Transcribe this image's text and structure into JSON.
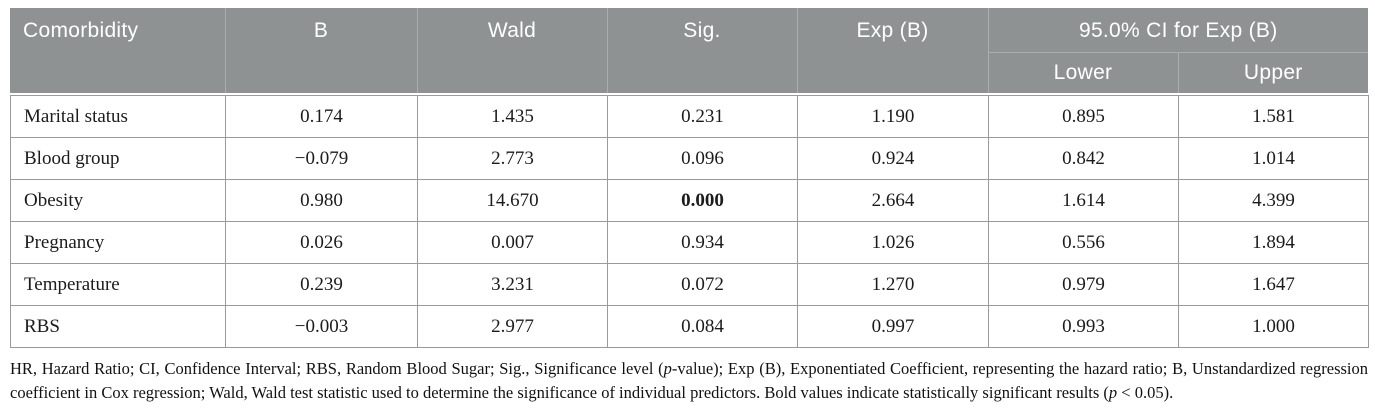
{
  "table": {
    "header": {
      "comorbidity": "Comorbidity",
      "b": "B",
      "wald": "Wald",
      "sig": "Sig.",
      "exp_b": "Exp (B)",
      "ci_group": "95.0% CI for Exp (B)",
      "lower": "Lower",
      "upper": "Upper"
    },
    "rows": [
      {
        "comorbidity": "Marital status",
        "values": [
          "0.174",
          "1.435",
          "0.231",
          "1.190",
          "0.895",
          "1.581"
        ],
        "bold": []
      },
      {
        "comorbidity": "Blood group",
        "values": [
          "−0.079",
          "2.773",
          "0.096",
          "0.924",
          "0.842",
          "1.014"
        ],
        "bold": []
      },
      {
        "comorbidity": "Obesity",
        "values": [
          "0.980",
          "14.670",
          "0.000",
          "2.664",
          "1.614",
          "4.399"
        ],
        "bold": [
          2
        ]
      },
      {
        "comorbidity": "Pregnancy",
        "values": [
          "0.026",
          "0.007",
          "0.934",
          "1.026",
          "0.556",
          "1.894"
        ],
        "bold": []
      },
      {
        "comorbidity": "Temperature",
        "values": [
          "0.239",
          "3.231",
          "0.072",
          "1.270",
          "0.979",
          "1.647"
        ],
        "bold": []
      },
      {
        "comorbidity": "RBS",
        "values": [
          "−0.003",
          "2.977",
          "0.084",
          "0.997",
          "0.993",
          "1.000"
        ],
        "bold": []
      }
    ]
  },
  "footnote": {
    "parts": [
      {
        "text": "HR, Hazard Ratio; CI, Confidence Interval; RBS, Random Blood Sugar; Sig., Significance level ("
      },
      {
        "text": "p",
        "italic": true
      },
      {
        "text": "-value); Exp (B), Exponentiated Coefficient, representing the hazard ratio; B, Unstandardized regression coefficient in Cox regression; Wald, Wald test statistic used to determine the significance of individual predictors. Bold values indicate statistically significant results ("
      },
      {
        "text": "p",
        "italic": true
      },
      {
        "text": " < 0.05)."
      }
    ]
  },
  "colors": {
    "header_bg": "#8e9293",
    "header_divider": "#aaaeaf",
    "header_text": "#ffffff",
    "grid": "#9a9a9a",
    "body_text": "#1b1b1b"
  }
}
